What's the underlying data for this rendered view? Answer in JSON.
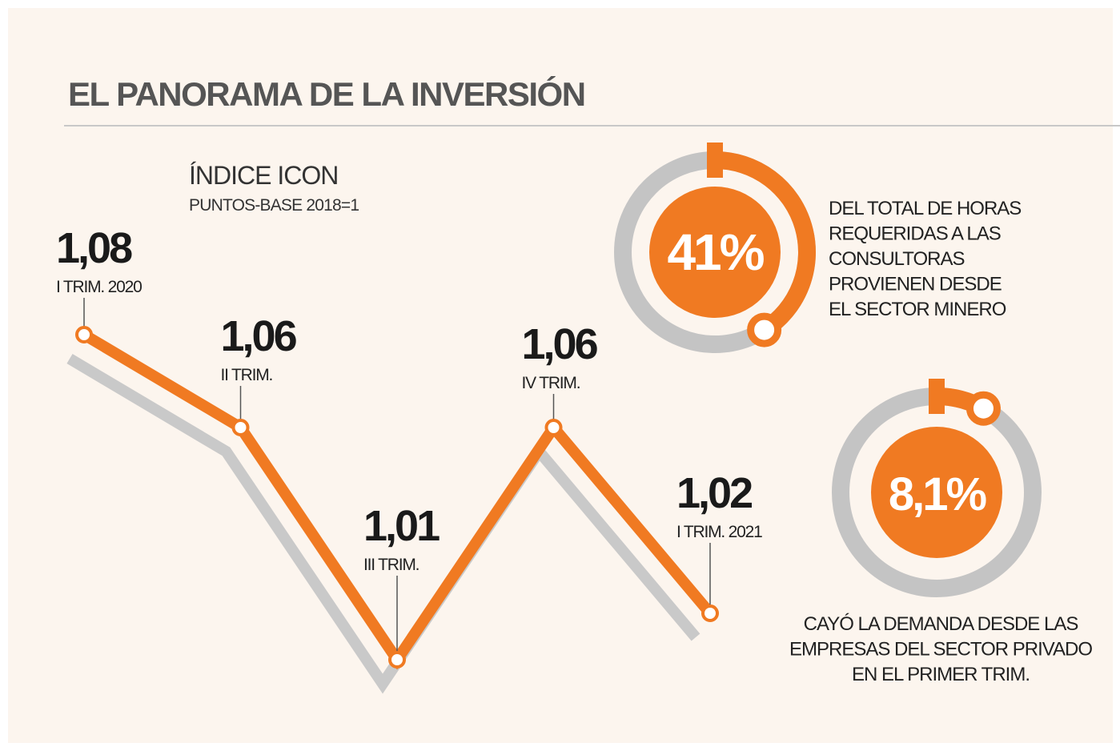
{
  "chart_data": {
    "type": "line",
    "title": "EL PANORAMA DE LA INVERSIÓN",
    "subtitle": "ÍNDICE ICON",
    "y_label": "PUNTOS-BASE 2018=1",
    "categories": [
      "I TRIM. 2020",
      "II TRIM.",
      "III TRIM.",
      "IV TRIM.",
      "I TRIM. 2021"
    ],
    "series": [
      {
        "name": "ÍNDICE ICON",
        "color": "#f07a22",
        "values": [
          1.08,
          1.06,
          1.01,
          1.06,
          1.02
        ],
        "value_labels": [
          "1,08",
          "1,06",
          "1,01",
          "1,06",
          "1,02"
        ]
      }
    ],
    "ylim": [
      1.0,
      1.1
    ]
  },
  "gauges": [
    {
      "value": 41,
      "label": "41%",
      "text": [
        "DEL TOTAL DE HORAS",
        "REQUERIDAS A LAS",
        "CONSULTORAS",
        "PROVIENEN DESDE",
        "EL SECTOR MINERO"
      ]
    },
    {
      "value": 8.1,
      "label": "8,1%",
      "text": [
        "CAYÓ LA DEMANDA DESDE LAS",
        "EMPRESAS DEL SECTOR PRIVADO",
        "EN EL PRIMER TRIM."
      ]
    }
  ]
}
